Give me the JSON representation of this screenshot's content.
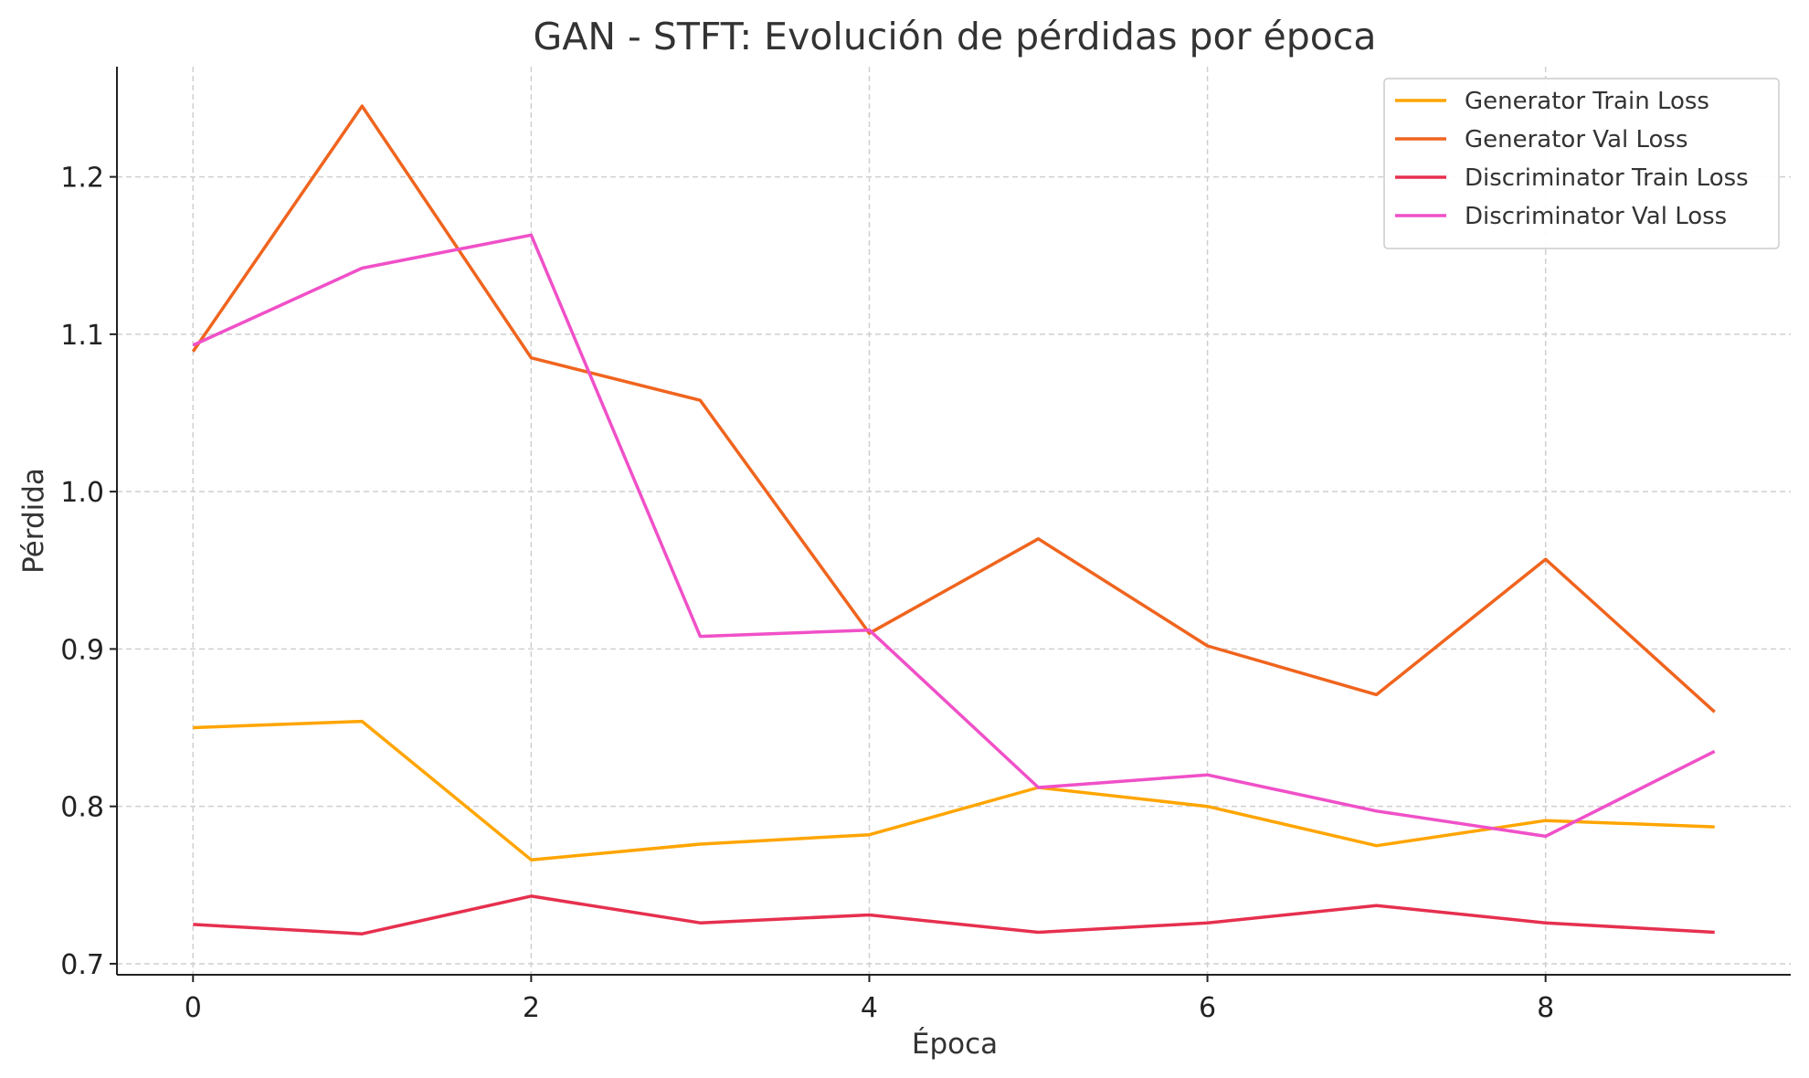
{
  "chart_data": {
    "type": "line",
    "title": "GAN - STFT: Evolución de pérdidas por época",
    "xlabel": "Época",
    "ylabel": "Pérdida",
    "x": [
      0,
      1,
      2,
      3,
      4,
      5,
      6,
      7,
      8,
      9
    ],
    "xlim": [
      -0.45,
      9.45
    ],
    "ylim": [
      0.693,
      1.27
    ],
    "xticks": [
      0,
      2,
      4,
      6,
      8
    ],
    "yticks": [
      0.7,
      0.8,
      0.9,
      1.0,
      1.1,
      1.2
    ],
    "ytick_labels": [
      "0.7",
      "0.8",
      "0.9",
      "1.0",
      "1.1",
      "1.2"
    ],
    "grid": true,
    "legend_position": "top-right",
    "series": [
      {
        "name": "Generator Train Loss",
        "color": "#FFA500",
        "values": [
          0.85,
          0.854,
          0.766,
          0.776,
          0.782,
          0.812,
          0.8,
          0.775,
          0.791,
          0.787
        ]
      },
      {
        "name": "Generator Val Loss",
        "color": "#F0641E",
        "values": [
          1.089,
          1.245,
          1.085,
          1.058,
          0.91,
          0.97,
          0.902,
          0.871,
          0.957,
          0.86
        ]
      },
      {
        "name": "Discriminator Train Loss",
        "color": "#E6304E",
        "values": [
          0.725,
          0.719,
          0.743,
          0.726,
          0.731,
          0.72,
          0.726,
          0.737,
          0.726,
          0.72
        ]
      },
      {
        "name": "Discriminator Val Loss",
        "color": "#F050C8",
        "values": [
          1.093,
          1.142,
          1.163,
          0.908,
          0.912,
          0.812,
          0.82,
          0.797,
          0.781,
          0.835
        ]
      }
    ]
  }
}
